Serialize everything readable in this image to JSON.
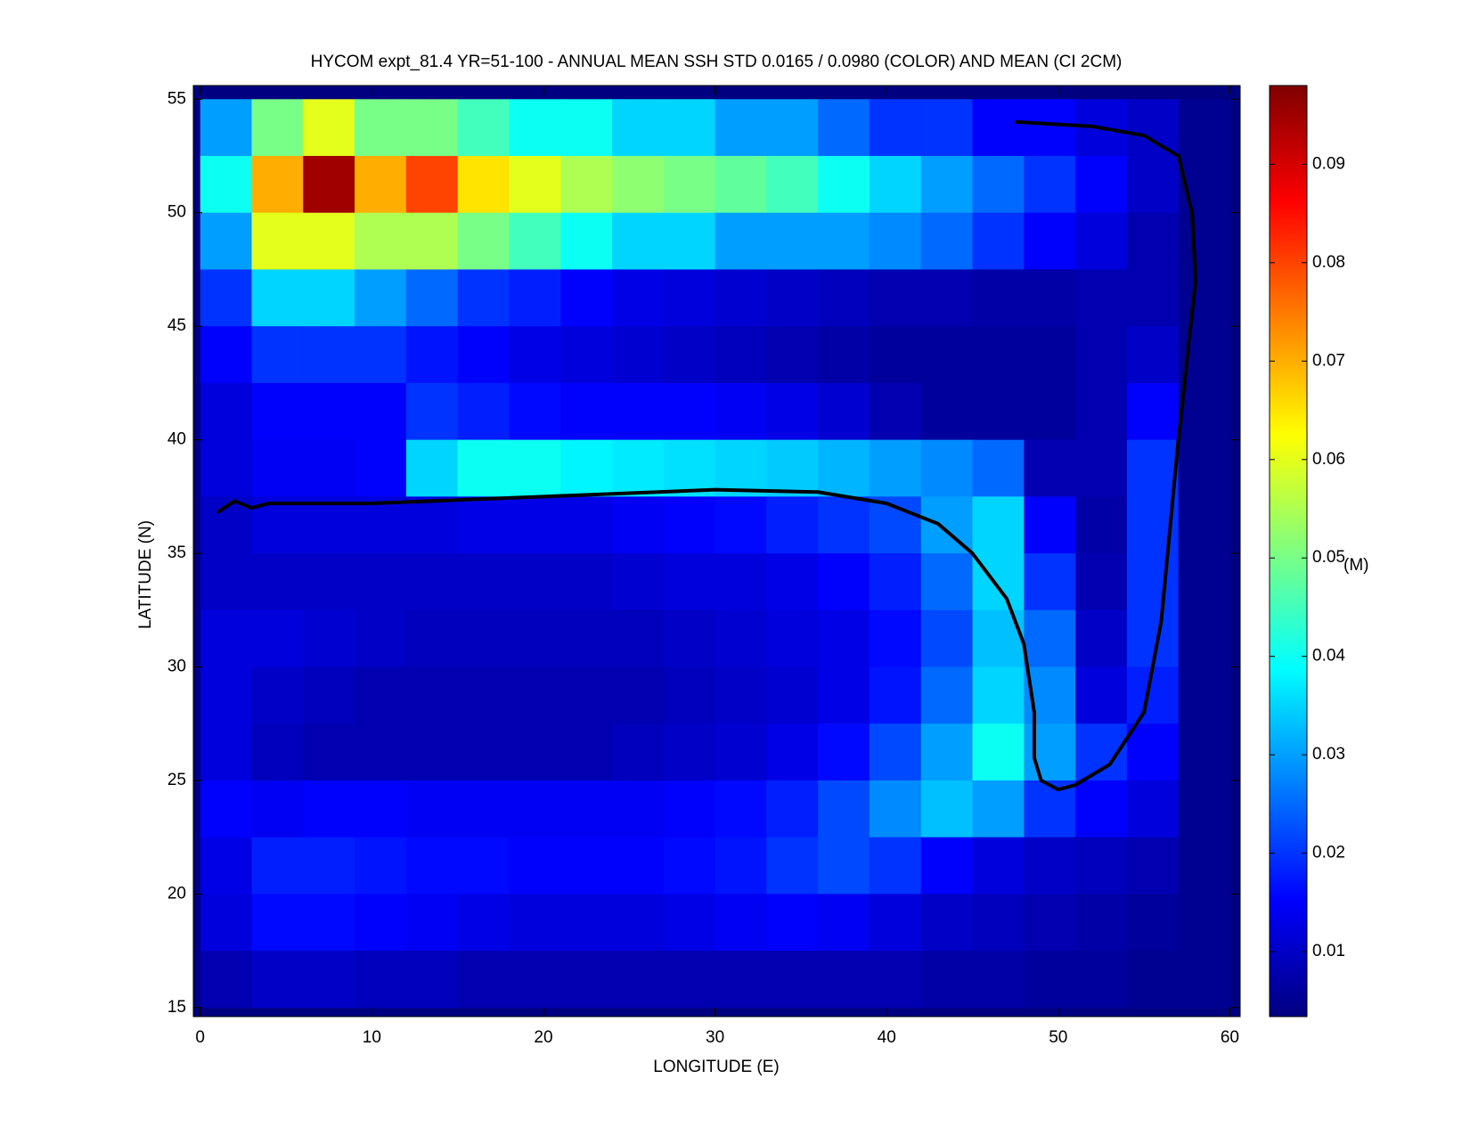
{
  "chart_data": {
    "type": "heatmap",
    "title": "HYCOM expt_81.4 YR=51-100 - ANNUAL MEAN SSH STD 0.0165 / 0.0980 (COLOR) AND MEAN (CI 2CM)",
    "x_label": "LONGITUDE (E)",
    "y_label": "LATITUDE (N)",
    "colorbar_label": "(M)",
    "colormap": "jet",
    "xlim": [
      -0.4,
      60.6
    ],
    "ylim": [
      14.6,
      55.6
    ],
    "xticks": [
      0,
      10,
      20,
      30,
      40,
      50,
      60
    ],
    "yticks": [
      15,
      20,
      25,
      30,
      35,
      40,
      45,
      50,
      55
    ],
    "clim": [
      0.0034,
      0.098
    ],
    "cticks": [
      0.01,
      0.02,
      0.03,
      0.04,
      0.05,
      0.06,
      0.07,
      0.08,
      0.09
    ],
    "x": [
      1.5,
      4.5,
      7.5,
      10.5,
      13.5,
      16.5,
      19.5,
      22.5,
      25.5,
      28.5,
      31.5,
      34.5,
      37.5,
      40.5,
      43.5,
      46.5,
      49.5,
      52.5,
      55.5,
      58.5
    ],
    "y": [
      53.75,
      51.25,
      48.75,
      46.25,
      43.75,
      41.25,
      38.75,
      36.25,
      33.75,
      31.25,
      28.75,
      26.25,
      23.75,
      21.25,
      18.75,
      16.25
    ],
    "z": [
      [
        0.03,
        0.05,
        0.06,
        0.05,
        0.05,
        0.045,
        0.04,
        0.04,
        0.035,
        0.035,
        0.03,
        0.03,
        0.025,
        0.02,
        0.02,
        0.015,
        0.015,
        0.012,
        0.01,
        0.005
      ],
      [
        0.04,
        0.07,
        0.095,
        0.07,
        0.08,
        0.065,
        0.06,
        0.055,
        0.052,
        0.05,
        0.048,
        0.045,
        0.04,
        0.035,
        0.03,
        0.025,
        0.02,
        0.015,
        0.01,
        0.005
      ],
      [
        0.03,
        0.06,
        0.06,
        0.055,
        0.055,
        0.05,
        0.045,
        0.04,
        0.035,
        0.035,
        0.03,
        0.03,
        0.03,
        0.028,
        0.025,
        0.02,
        0.015,
        0.012,
        0.008,
        0.005
      ],
      [
        0.02,
        0.035,
        0.035,
        0.03,
        0.025,
        0.02,
        0.018,
        0.015,
        0.013,
        0.012,
        0.011,
        0.01,
        0.009,
        0.008,
        0.008,
        0.007,
        0.007,
        0.008,
        0.008,
        0.005
      ],
      [
        0.015,
        0.02,
        0.02,
        0.02,
        0.017,
        0.015,
        0.013,
        0.012,
        0.011,
        0.01,
        0.009,
        0.008,
        0.007,
        0.006,
        0.006,
        0.006,
        0.006,
        0.008,
        0.01,
        0.005
      ],
      [
        0.012,
        0.015,
        0.015,
        0.015,
        0.02,
        0.018,
        0.016,
        0.015,
        0.015,
        0.015,
        0.014,
        0.013,
        0.011,
        0.008,
        0.006,
        0.006,
        0.006,
        0.008,
        0.015,
        0.005
      ],
      [
        0.012,
        0.014,
        0.014,
        0.015,
        0.035,
        0.04,
        0.04,
        0.038,
        0.037,
        0.036,
        0.035,
        0.034,
        0.032,
        0.03,
        0.028,
        0.025,
        0.008,
        0.008,
        0.02,
        0.005
      ],
      [
        0.01,
        0.012,
        0.012,
        0.012,
        0.012,
        0.013,
        0.013,
        0.013,
        0.014,
        0.015,
        0.016,
        0.018,
        0.02,
        0.022,
        0.03,
        0.035,
        0.015,
        0.007,
        0.02,
        0.005
      ],
      [
        0.01,
        0.01,
        0.01,
        0.01,
        0.01,
        0.01,
        0.01,
        0.01,
        0.011,
        0.012,
        0.012,
        0.013,
        0.015,
        0.018,
        0.025,
        0.035,
        0.02,
        0.008,
        0.02,
        0.005
      ],
      [
        0.012,
        0.012,
        0.011,
        0.01,
        0.009,
        0.009,
        0.009,
        0.009,
        0.009,
        0.01,
        0.011,
        0.012,
        0.013,
        0.016,
        0.022,
        0.033,
        0.025,
        0.01,
        0.02,
        0.005
      ],
      [
        0.012,
        0.01,
        0.009,
        0.008,
        0.008,
        0.008,
        0.008,
        0.008,
        0.008,
        0.009,
        0.01,
        0.011,
        0.013,
        0.017,
        0.025,
        0.035,
        0.028,
        0.012,
        0.018,
        0.005
      ],
      [
        0.012,
        0.009,
        0.008,
        0.008,
        0.008,
        0.008,
        0.008,
        0.008,
        0.009,
        0.01,
        0.011,
        0.013,
        0.016,
        0.022,
        0.03,
        0.04,
        0.03,
        0.02,
        0.015,
        0.005
      ],
      [
        0.015,
        0.014,
        0.015,
        0.015,
        0.014,
        0.014,
        0.014,
        0.014,
        0.014,
        0.015,
        0.016,
        0.018,
        0.022,
        0.028,
        0.033,
        0.03,
        0.02,
        0.015,
        0.012,
        0.005
      ],
      [
        0.013,
        0.018,
        0.018,
        0.017,
        0.016,
        0.016,
        0.015,
        0.015,
        0.015,
        0.016,
        0.017,
        0.02,
        0.022,
        0.02,
        0.015,
        0.012,
        0.01,
        0.009,
        0.008,
        0.005
      ],
      [
        0.012,
        0.016,
        0.016,
        0.015,
        0.014,
        0.013,
        0.012,
        0.012,
        0.012,
        0.013,
        0.014,
        0.015,
        0.014,
        0.012,
        0.01,
        0.009,
        0.008,
        0.007,
        0.006,
        0.005
      ],
      [
        0.008,
        0.01,
        0.01,
        0.009,
        0.009,
        0.008,
        0.008,
        0.008,
        0.008,
        0.008,
        0.008,
        0.008,
        0.008,
        0.008,
        0.007,
        0.007,
        0.006,
        0.006,
        0.005,
        0.005
      ]
    ],
    "contour": {
      "x": [
        1,
        2,
        3,
        4,
        10,
        20,
        30,
        36,
        40,
        43,
        45,
        47,
        48,
        48.6,
        48.6,
        49,
        50,
        51,
        53,
        55,
        56,
        57,
        58,
        57.8,
        57,
        55,
        52,
        47.5
      ],
      "y": [
        36.8,
        37.3,
        37,
        37.2,
        37.2,
        37.5,
        37.8,
        37.7,
        37.2,
        36.3,
        35,
        33,
        31,
        28,
        26,
        25,
        24.6,
        24.8,
        25.7,
        28,
        32,
        40,
        47,
        50,
        52.5,
        53.4,
        53.8,
        54
      ]
    }
  }
}
